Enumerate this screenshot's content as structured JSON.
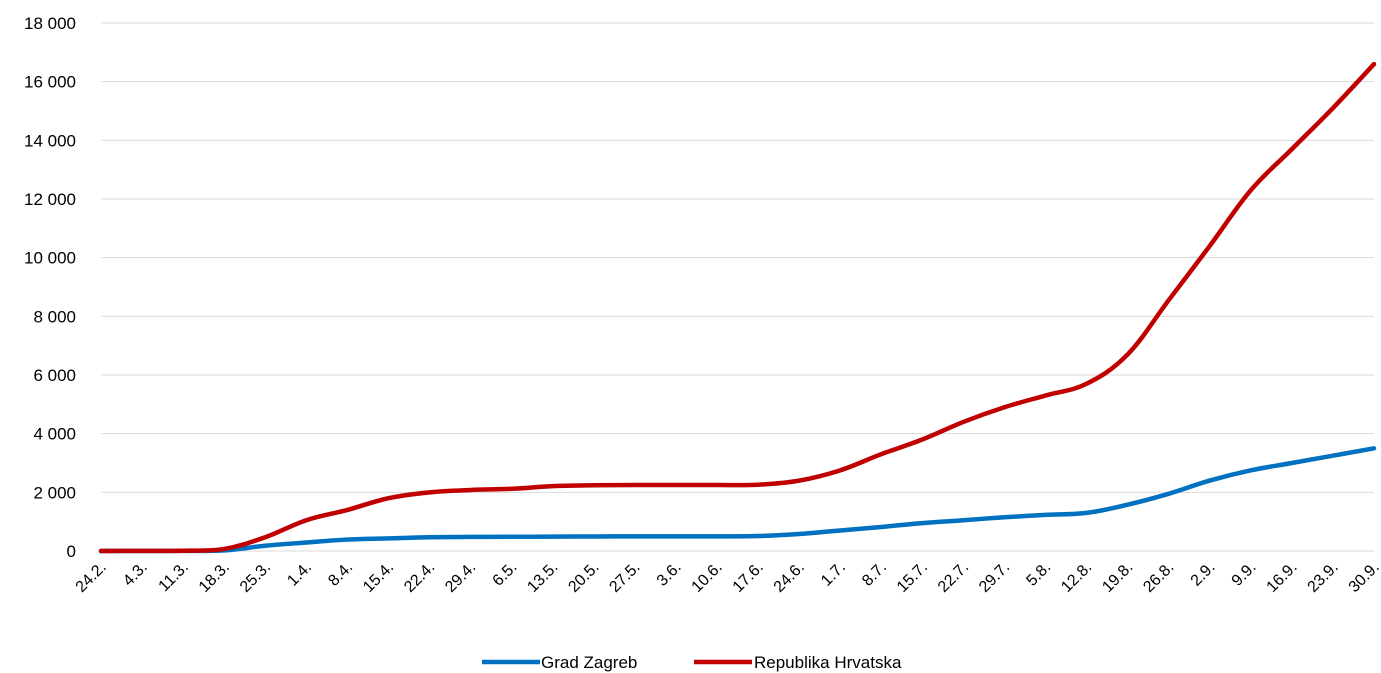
{
  "chart_data": {
    "type": "line",
    "title": "",
    "xlabel": "",
    "ylabel": "",
    "ylim": [
      0,
      18000
    ],
    "y_ticks": [
      "0",
      "2 000",
      "4 000",
      "6 000",
      "8 000",
      "10 000",
      "12 000",
      "14 000",
      "16 000",
      "18 000"
    ],
    "y_tick_values": [
      0,
      2000,
      4000,
      6000,
      8000,
      10000,
      12000,
      14000,
      16000,
      18000
    ],
    "grid": true,
    "legend_position": "bottom",
    "categories": [
      "24.2.",
      "4.3.",
      "11.3.",
      "18.3.",
      "25.3.",
      "1.4.",
      "8.4.",
      "15.4.",
      "22.4.",
      "29.4.",
      "6.5.",
      "13.5.",
      "20.5.",
      "27.5.",
      "3.6.",
      "10.6.",
      "17.6.",
      "24.6.",
      "1.7.",
      "8.7.",
      "15.7.",
      "22.7.",
      "29.7.",
      "5.8.",
      "12.8.",
      "19.8.",
      "26.8.",
      "2.9.",
      "9.9.",
      "16.9.",
      "23.9.",
      "30.9."
    ],
    "series": [
      {
        "name": "Grad Zagreb",
        "color": "#0070c0",
        "values": [
          0,
          0,
          5,
          20,
          180,
          290,
          390,
          430,
          470,
          480,
          485,
          490,
          495,
          500,
          500,
          500,
          510,
          580,
          700,
          820,
          950,
          1050,
          1150,
          1230,
          1300,
          1580,
          1950,
          2400,
          2750,
          3000,
          3250,
          3500
        ]
      },
      {
        "name": "Republika Hrvatska",
        "color": "#c00000",
        "values": [
          0,
          5,
          10,
          70,
          470,
          1050,
          1400,
          1800,
          2000,
          2080,
          2120,
          2210,
          2240,
          2250,
          2250,
          2250,
          2260,
          2400,
          2750,
          3300,
          3800,
          4400,
          4900,
          5300,
          5700,
          6700,
          8550,
          10400,
          12300,
          13700,
          15100,
          16600
        ]
      }
    ]
  }
}
